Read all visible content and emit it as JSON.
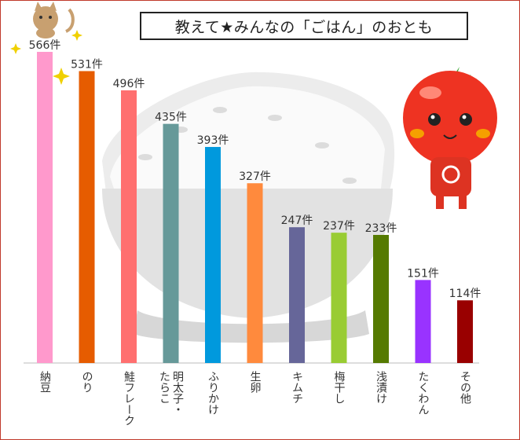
{
  "title": "教えて★みんなの「ごはん」のおとも",
  "chart_data": {
    "type": "bar",
    "title": "教えて★みんなの「ごはん」のおとも",
    "unit_suffix": "件",
    "categories": [
      "納豆",
      "のり",
      "鮭フレーク",
      "明太子・たらこ",
      "ふりかけ",
      "生卵",
      "キムチ",
      "梅干し",
      "浅漬け",
      "たくわん",
      "その他"
    ],
    "category_lines": [
      [
        "納豆"
      ],
      [
        "のり"
      ],
      [
        "鮭フレーク"
      ],
      [
        "明太子・",
        "たらこ"
      ],
      [
        "ふりかけ"
      ],
      [
        "生卵"
      ],
      [
        "キムチ"
      ],
      [
        "梅干し"
      ],
      [
        "浅漬け"
      ],
      [
        "たくわん"
      ],
      [
        "その他"
      ]
    ],
    "values": [
      566,
      531,
      496,
      435,
      393,
      327,
      247,
      237,
      233,
      151,
      114
    ],
    "colors": [
      "#ff99cc",
      "#e65c00",
      "#ff6f6f",
      "#669999",
      "#0099dd",
      "#ff8a3d",
      "#666699",
      "#99cc33",
      "#557a00",
      "#9933ff",
      "#990000"
    ],
    "ylim": [
      0,
      566
    ],
    "grid": false
  }
}
